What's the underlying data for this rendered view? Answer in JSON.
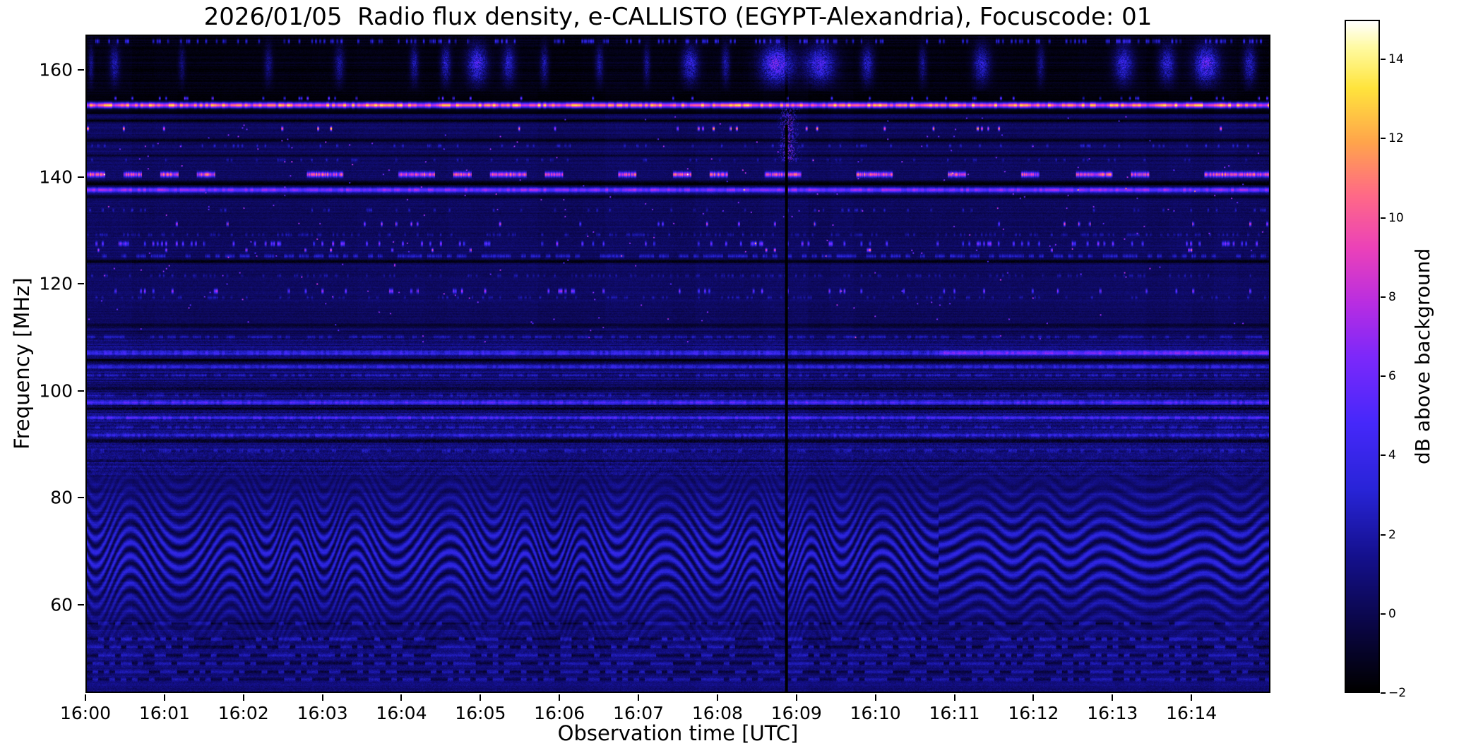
{
  "title": "2026/01/05  Radio flux density, e-CALLISTO (EGYPT-Alexandria), Focuscode: 01",
  "chart_data": {
    "type": "heatmap",
    "title": "2026/01/05  Radio flux density, e-CALLISTO (EGYPT-Alexandria), Focuscode: 01",
    "xlabel": "Observation time [UTC]",
    "ylabel": "Frequency [MHz]",
    "grid": false,
    "legend": false,
    "x_range_minutes": [
      0,
      15
    ],
    "x_ticks": [
      "16:00",
      "16:01",
      "16:02",
      "16:03",
      "16:04",
      "16:05",
      "16:06",
      "16:07",
      "16:08",
      "16:09",
      "16:10",
      "16:11",
      "16:12",
      "16:13",
      "16:14"
    ],
    "y_range_mhz": [
      43.5,
      166.6
    ],
    "y_ticks": [
      {
        "v": 160,
        "label": "160"
      },
      {
        "v": 140,
        "label": "140"
      },
      {
        "v": 120,
        "label": "120"
      },
      {
        "v": 100,
        "label": "100"
      },
      {
        "v": 80,
        "label": "80"
      },
      {
        "v": 60,
        "label": "60"
      }
    ],
    "colorbar": {
      "label": "dB above background",
      "range": [
        -2,
        15
      ],
      "ticks": [
        {
          "v": 14,
          "label": "14"
        },
        {
          "v": 12,
          "label": "12"
        },
        {
          "v": 10,
          "label": "10"
        },
        {
          "v": 8,
          "label": "8"
        },
        {
          "v": 6,
          "label": "6"
        },
        {
          "v": 4,
          "label": "4"
        },
        {
          "v": 2,
          "label": "2"
        },
        {
          "v": 0,
          "label": "0"
        },
        {
          "v": -2,
          "label": "−2"
        }
      ],
      "colormap_stops": [
        [
          0.0,
          0,
          0,
          0
        ],
        [
          0.1,
          10,
          6,
          70
        ],
        [
          0.2,
          20,
          16,
          140
        ],
        [
          0.3,
          40,
          36,
          215
        ],
        [
          0.4,
          70,
          40,
          250
        ],
        [
          0.5,
          125,
          40,
          250
        ],
        [
          0.58,
          185,
          45,
          225
        ],
        [
          0.66,
          235,
          65,
          185
        ],
        [
          0.74,
          255,
          105,
          135
        ],
        [
          0.82,
          255,
          165,
          75
        ],
        [
          0.9,
          255,
          228,
          60
        ],
        [
          0.96,
          255,
          250,
          160
        ],
        [
          1.0,
          255,
          255,
          255
        ]
      ]
    },
    "features": {
      "background_profile": [
        {
          "f_min": 156.2,
          "f_max": 167.0,
          "bg": -1.5,
          "noise": 0.5
        },
        {
          "f_min": 152.0,
          "f_max": 156.2,
          "bg": -1.85,
          "noise": 0.3
        },
        {
          "f_min": 110.0,
          "f_max": 152.0,
          "bg": 0.35,
          "noise": 0.8
        },
        {
          "f_min": 97.0,
          "f_max": 110.0,
          "bg": 0.8,
          "noise": 1.3
        },
        {
          "f_min": 84.0,
          "f_max": 97.0,
          "bg": 1.0,
          "noise": 1.6
        },
        {
          "f_min": 55.0,
          "f_max": 84.0,
          "bg": 0.55,
          "noise": 0.7
        },
        {
          "f_min": 43.5,
          "f_max": 55.0,
          "bg": 0.85,
          "noise": 1.1
        }
      ],
      "waves": {
        "f_center": 69,
        "f_sigma": 11.5,
        "period_mhz": 2.55,
        "base": 1.0,
        "amp": 2.0,
        "t_period": 0.95,
        "phase_amp_a": 12,
        "phase_amp_b": 4,
        "t_switch": 10.8
      },
      "vertical_line": {
        "t": 8.87,
        "halfwidth_min": 0.02
      },
      "spike_cluster": {
        "t": 8.9,
        "tw": 0.12,
        "f1": 143,
        "f2": 153,
        "amp": 6,
        "p": 0.3
      },
      "top_band": {
        "f_min": 156.3,
        "f_center": 161.3,
        "f_sigma": 3.4
      },
      "top_bursts": [
        {
          "t": 0.05,
          "w": 0.03,
          "a": 4
        },
        {
          "t": 0.35,
          "w": 0.06,
          "a": 5
        },
        {
          "t": 1.2,
          "w": 0.04,
          "a": 3.5
        },
        {
          "t": 2.3,
          "w": 0.05,
          "a": 4
        },
        {
          "t": 3.2,
          "w": 0.06,
          "a": 4.5
        },
        {
          "t": 4.15,
          "w": 0.05,
          "a": 5
        },
        {
          "t": 4.55,
          "w": 0.06,
          "a": 6
        },
        {
          "t": 4.95,
          "w": 0.12,
          "a": 8.5
        },
        {
          "t": 5.35,
          "w": 0.08,
          "a": 6
        },
        {
          "t": 5.8,
          "w": 0.05,
          "a": 5
        },
        {
          "t": 6.5,
          "w": 0.05,
          "a": 4.5
        },
        {
          "t": 7.1,
          "w": 0.04,
          "a": 4
        },
        {
          "t": 7.65,
          "w": 0.1,
          "a": 7
        },
        {
          "t": 8.1,
          "w": 0.05,
          "a": 5
        },
        {
          "t": 8.75,
          "w": 0.2,
          "a": 10
        },
        {
          "t": 9.3,
          "w": 0.18,
          "a": 8.5
        },
        {
          "t": 9.9,
          "w": 0.08,
          "a": 6
        },
        {
          "t": 10.6,
          "w": 0.05,
          "a": 4
        },
        {
          "t": 11.35,
          "w": 0.1,
          "a": 6.5
        },
        {
          "t": 12.1,
          "w": 0.05,
          "a": 4
        },
        {
          "t": 13.15,
          "w": 0.12,
          "a": 7
        },
        {
          "t": 13.7,
          "w": 0.1,
          "a": 6.5
        },
        {
          "t": 14.2,
          "w": 0.15,
          "a": 9.5
        },
        {
          "t": 14.75,
          "w": 0.08,
          "a": 6
        }
      ],
      "h_lines": [
        {
          "f": 165.6,
          "w": 0.4,
          "amp": 4.0,
          "mode": "speckle",
          "p": 0.3
        },
        {
          "f": 153.6,
          "w": 0.5,
          "amp": 12.5,
          "mode": "solid",
          "flick": 3.0
        },
        {
          "f": 154.9,
          "w": 0.3,
          "amp": 6.0,
          "mode": "speckle",
          "p": 0.06
        },
        {
          "f": 150.7,
          "w": 0.4,
          "amp": -1.8,
          "mode": "dark"
        },
        {
          "f": 149.2,
          "w": 0.35,
          "amp": 9.0,
          "mode": "speckle",
          "p": 0.05
        },
        {
          "f": 147.0,
          "w": 0.35,
          "amp": -1.6,
          "mode": "dark"
        },
        {
          "f": 146.0,
          "w": 0.3,
          "amp": 2.0,
          "mode": "speckle",
          "p": 0.12
        },
        {
          "f": 144.2,
          "w": 0.3,
          "amp": -1.2,
          "mode": "dark"
        },
        {
          "f": 143.3,
          "w": 0.3,
          "amp": 1.6,
          "mode": "speckle",
          "p": 0.1
        },
        {
          "f": 140.6,
          "w": 0.45,
          "amp": 8.5,
          "mode": "dash",
          "p": 0.32,
          "seg": 26
        },
        {
          "f": 138.9,
          "w": 0.5,
          "amp": -2.3,
          "mode": "dark"
        },
        {
          "f": 137.7,
          "w": 0.45,
          "amp": 6.5,
          "mode": "solid",
          "flick": 1.5
        },
        {
          "f": 136.4,
          "w": 0.4,
          "amp": -1.5,
          "mode": "dark"
        },
        {
          "f": 133.9,
          "w": 0.3,
          "amp": 2.0,
          "mode": "speckle",
          "p": 0.1
        },
        {
          "f": 131.3,
          "w": 0.35,
          "amp": 7.0,
          "mode": "speckle",
          "p": 0.04
        },
        {
          "f": 129.3,
          "w": 0.3,
          "amp": 1.6,
          "mode": "speckle",
          "p": 0.3
        },
        {
          "f": 127.6,
          "w": 0.4,
          "amp": 5.0,
          "mode": "speckle",
          "p": 0.18
        },
        {
          "f": 126.4,
          "w": 0.3,
          "amp": 8.0,
          "mode": "speckle",
          "p": 0.03
        },
        {
          "f": 125.3,
          "w": 0.35,
          "amp": 2.2,
          "mode": "dash",
          "p": 0.5,
          "seg": 7
        },
        {
          "f": 124.3,
          "w": 0.4,
          "amp": -1.8,
          "mode": "dark"
        },
        {
          "f": 121.6,
          "w": 0.3,
          "amp": 1.4,
          "mode": "speckle",
          "p": 0.25
        },
        {
          "f": 118.7,
          "w": 0.4,
          "amp": 5.5,
          "mode": "speckle",
          "p": 0.07
        },
        {
          "f": 117.5,
          "w": 0.3,
          "amp": 1.5,
          "mode": "speckle",
          "p": 0.2
        },
        {
          "f": 112.4,
          "w": 0.35,
          "amp": -1.4,
          "mode": "dark"
        },
        {
          "f": 110.1,
          "w": 0.3,
          "amp": 1.6,
          "mode": "dash",
          "p": 0.5,
          "seg": 6
        },
        {
          "f": 107.1,
          "w": 0.45,
          "amp": 3.0,
          "mode": "solid",
          "flick": 1.2,
          "t2": 10.8,
          "amp2": 5.4
        },
        {
          "f": 105.7,
          "w": 0.4,
          "amp": -2.4,
          "mode": "dark"
        },
        {
          "f": 104.5,
          "w": 0.35,
          "amp": 2.6,
          "mode": "solid",
          "flick": 1.0
        },
        {
          "f": 102.9,
          "w": 0.3,
          "amp": 1.6,
          "mode": "dash",
          "p": 0.55,
          "seg": 5
        },
        {
          "f": 100.4,
          "w": 0.35,
          "amp": -1.6,
          "mode": "dark"
        },
        {
          "f": 99.2,
          "w": 0.3,
          "amp": 1.5,
          "mode": "dash",
          "p": 0.5,
          "seg": 5
        },
        {
          "f": 97.8,
          "w": 0.4,
          "amp": 4.2,
          "mode": "solid",
          "flick": 1.3
        },
        {
          "f": 96.7,
          "w": 0.4,
          "amp": -2.2,
          "mode": "dark"
        },
        {
          "f": 94.9,
          "w": 0.35,
          "amp": 3.1,
          "mode": "solid",
          "flick": 1.4
        },
        {
          "f": 93.2,
          "w": 0.3,
          "amp": 1.5,
          "mode": "dash",
          "p": 0.5,
          "seg": 6
        },
        {
          "f": 91.6,
          "w": 0.35,
          "amp": 2.7,
          "mode": "solid",
          "flick": 1.2
        },
        {
          "f": 90.6,
          "w": 0.4,
          "amp": -2.0,
          "mode": "dark"
        },
        {
          "f": 88.7,
          "w": 0.3,
          "amp": 1.6,
          "mode": "dash",
          "p": 0.45,
          "seg": 6
        },
        {
          "f": 86.9,
          "w": 0.3,
          "amp": -1.2,
          "mode": "dark"
        },
        {
          "f": 56.3,
          "w": 0.3,
          "amp": 1.2,
          "mode": "binary",
          "seg": 8
        },
        {
          "f": 53.4,
          "w": 0.3,
          "amp": 1.5,
          "mode": "binary",
          "seg": 8
        },
        {
          "f": 51.9,
          "w": 0.3,
          "amp": 1.5,
          "mode": "binary",
          "seg": 8
        },
        {
          "f": 50.3,
          "w": 0.3,
          "amp": 1.5,
          "mode": "binary",
          "seg": 8
        },
        {
          "f": 48.8,
          "w": 0.3,
          "amp": 1.4,
          "mode": "binary",
          "seg": 8
        },
        {
          "f": 47.2,
          "w": 0.3,
          "amp": 1.4,
          "mode": "binary",
          "seg": 8
        },
        {
          "f": 45.8,
          "w": 0.3,
          "amp": 1.3,
          "mode": "binary",
          "seg": 8
        }
      ]
    }
  }
}
